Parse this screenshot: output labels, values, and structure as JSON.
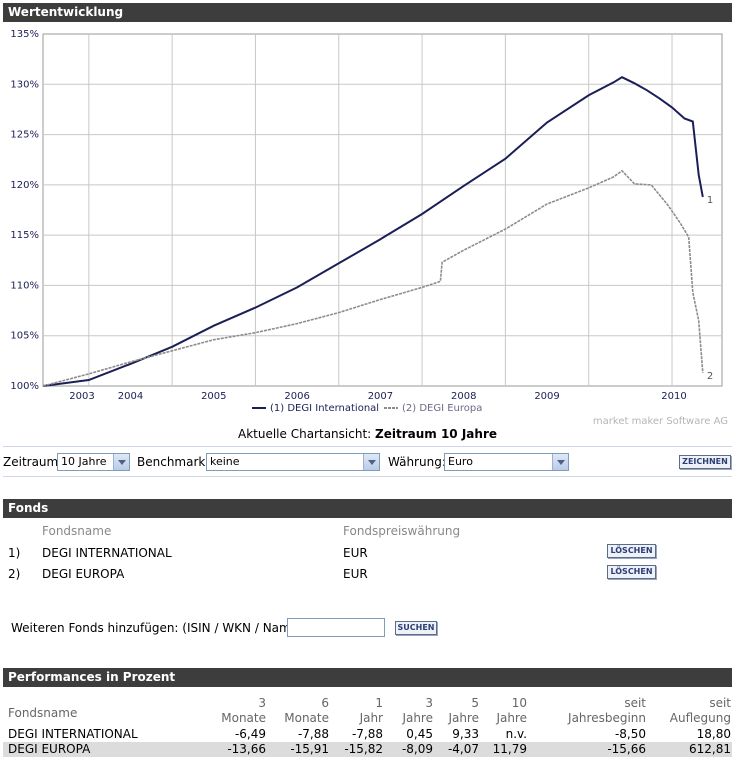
{
  "wertentwicklung": {
    "title": "Wertentwicklung"
  },
  "chart_data": {
    "type": "line",
    "x_ticks": [
      "2003",
      "2004",
      "2005",
      "2006",
      "2007",
      "2008",
      "2009",
      "2010"
    ],
    "y_ticks": [
      "100%",
      "105%",
      "110%",
      "115%",
      "120%",
      "125%",
      "130%",
      "135%"
    ],
    "ylim": [
      100,
      135
    ],
    "grid": true,
    "legend_position": "bottom-center",
    "watermark": "market maker Software AG",
    "series": [
      {
        "name": "DEGI International",
        "legend_label": "(1) DEGI International",
        "end_label": "1",
        "color": "#1b1f55",
        "x": [
          2002.45,
          2003.0,
          2003.5,
          2004.0,
          2004.5,
          2005.0,
          2005.5,
          2006.0,
          2006.5,
          2007.0,
          2007.5,
          2008.0,
          2008.5,
          2009.0,
          2009.3,
          2009.4,
          2009.55,
          2009.7,
          2009.85,
          2010.0,
          2010.15,
          2010.25,
          2010.32,
          2010.37
        ],
        "values": [
          100.0,
          100.6,
          102.2,
          103.9,
          106.0,
          107.8,
          109.8,
          112.2,
          114.6,
          117.1,
          119.9,
          122.6,
          126.2,
          128.9,
          130.2,
          130.7,
          130.1,
          129.4,
          128.6,
          127.7,
          126.6,
          126.3,
          121.0,
          118.8
        ]
      },
      {
        "name": "DEGI Europa",
        "legend_label": "(2) DEGI Europa",
        "end_label": "2",
        "color": "#8c8c8c",
        "x": [
          2002.45,
          2003.0,
          2003.5,
          2004.0,
          2004.5,
          2005.0,
          2005.5,
          2006.0,
          2006.5,
          2007.0,
          2007.22,
          2007.24,
          2007.5,
          2008.0,
          2008.5,
          2009.0,
          2009.3,
          2009.4,
          2009.55,
          2009.75,
          2009.95,
          2010.1,
          2010.2,
          2010.25,
          2010.32,
          2010.37
        ],
        "values": [
          100.0,
          101.2,
          102.4,
          103.5,
          104.6,
          105.3,
          106.2,
          107.3,
          108.6,
          109.8,
          110.4,
          112.3,
          113.5,
          115.6,
          118.1,
          119.7,
          120.8,
          121.4,
          120.1,
          120.0,
          118.0,
          116.2,
          114.8,
          109.3,
          106.5,
          101.3
        ]
      }
    ]
  },
  "caption": {
    "label": "Aktuelle Chartansicht:",
    "value": "Zeitraum 10 Jahre"
  },
  "controls": {
    "zeitraum_label": "Zeitraum:",
    "zeitraum_value": "10 Jahre",
    "benchmark_label": "Benchmark:",
    "benchmark_value": "keine",
    "waehrung_label": "Währung:",
    "waehrung_value": "Euro",
    "zeichnen_label": "ZEICHNEN"
  },
  "fonds": {
    "title": "Fonds",
    "col_name": "Fondsname",
    "col_currency": "Fondspreiswährung",
    "rows": [
      {
        "index": "1)",
        "name": "DEGI INTERNATIONAL",
        "currency": "EUR",
        "delete_label": "LÖSCHEN"
      },
      {
        "index": "2)",
        "name": "DEGI EUROPA",
        "currency": "EUR",
        "delete_label": "LÖSCHEN"
      }
    ],
    "add_label": "Weiteren Fonds hinzufügen: (ISIN / WKN / Name)",
    "search_value": "",
    "search_button": "SUCHEN"
  },
  "performance": {
    "title": "Performances in Prozent",
    "columns": [
      {
        "top": "",
        "bottom": "Fondsname"
      },
      {
        "top": "3",
        "bottom": "Monate"
      },
      {
        "top": "6",
        "bottom": "Monate"
      },
      {
        "top": "1",
        "bottom": "Jahr"
      },
      {
        "top": "3",
        "bottom": "Jahre"
      },
      {
        "top": "5",
        "bottom": "Jahre"
      },
      {
        "top": "10",
        "bottom": "Jahre"
      },
      {
        "top": "seit",
        "bottom": "Jahresbeginn"
      },
      {
        "top": "seit",
        "bottom": "Auflegung"
      }
    ],
    "rows": [
      {
        "name": "DEGI INTERNATIONAL",
        "values": [
          "-6,49",
          "-7,88",
          "-7,88",
          "0,45",
          "9,33",
          "n.v.",
          "-8,50",
          "18,80"
        ]
      },
      {
        "name": "DEGI EUROPA",
        "values": [
          "-13,66",
          "-15,91",
          "-15,82",
          "-8,09",
          "-4,07",
          "11,79",
          "-15,66",
          "612,81"
        ]
      }
    ]
  }
}
